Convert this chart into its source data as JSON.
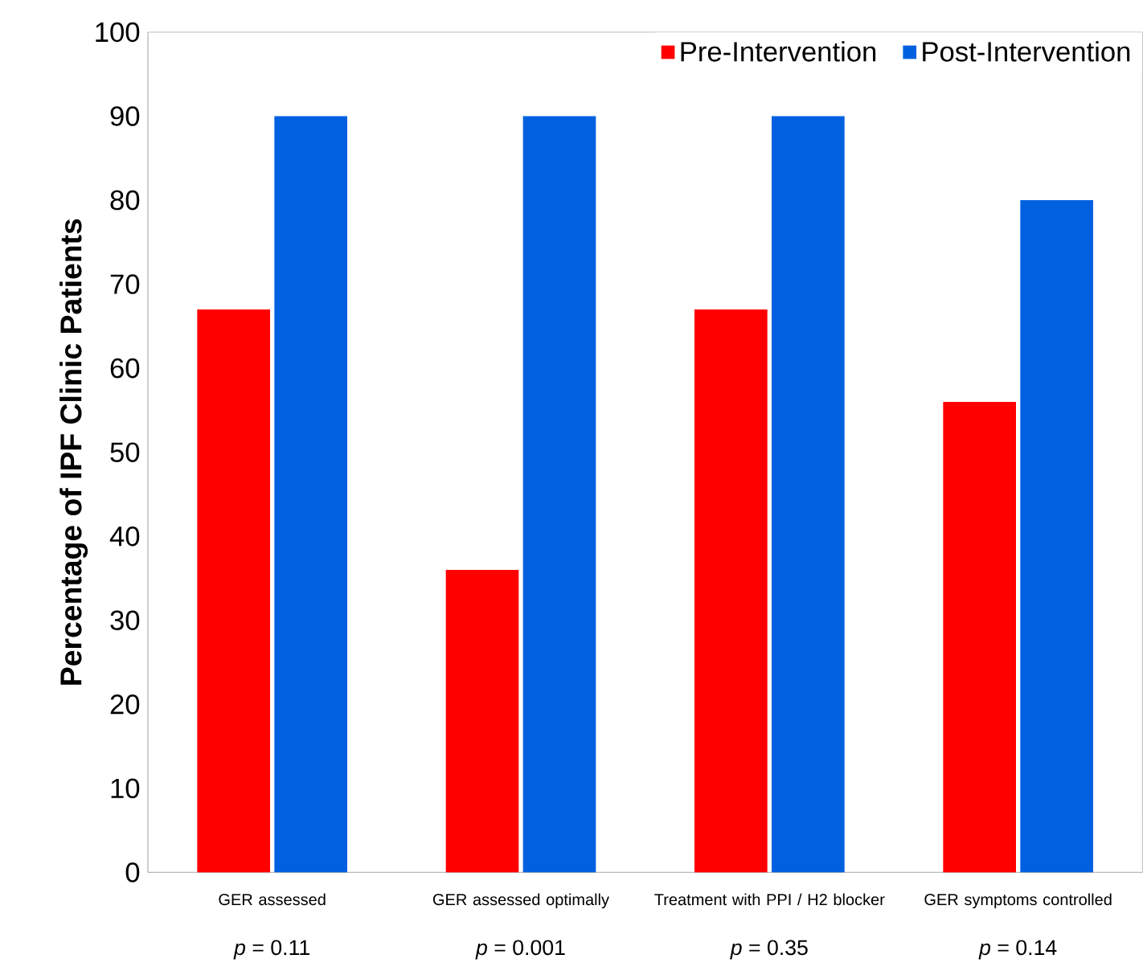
{
  "chart_data": {
    "type": "bar",
    "ylabel": "Percentage of IPF Clinic Patients",
    "categories": [
      "GER assessed",
      "GER assessed optimally",
      "Treatment with PPI / H2 blocker",
      "GER symptoms controlled"
    ],
    "series": [
      {
        "name": "Pre-Intervention",
        "color": "#ff0000",
        "values": [
          67,
          36,
          67,
          56
        ]
      },
      {
        "name": "Post-Intervention",
        "color": "#0060e0",
        "values": [
          90,
          90,
          90,
          80
        ]
      }
    ],
    "ylim": [
      0,
      100
    ],
    "yticks": [
      0,
      10,
      20,
      30,
      40,
      50,
      60,
      70,
      80,
      90,
      100
    ],
    "legend": "top right",
    "grid": false,
    "annotations": [
      "*p* = 0.11",
      "*p* = 0.001",
      "*p* = 0.35",
      "*p* = 0.14"
    ]
  }
}
